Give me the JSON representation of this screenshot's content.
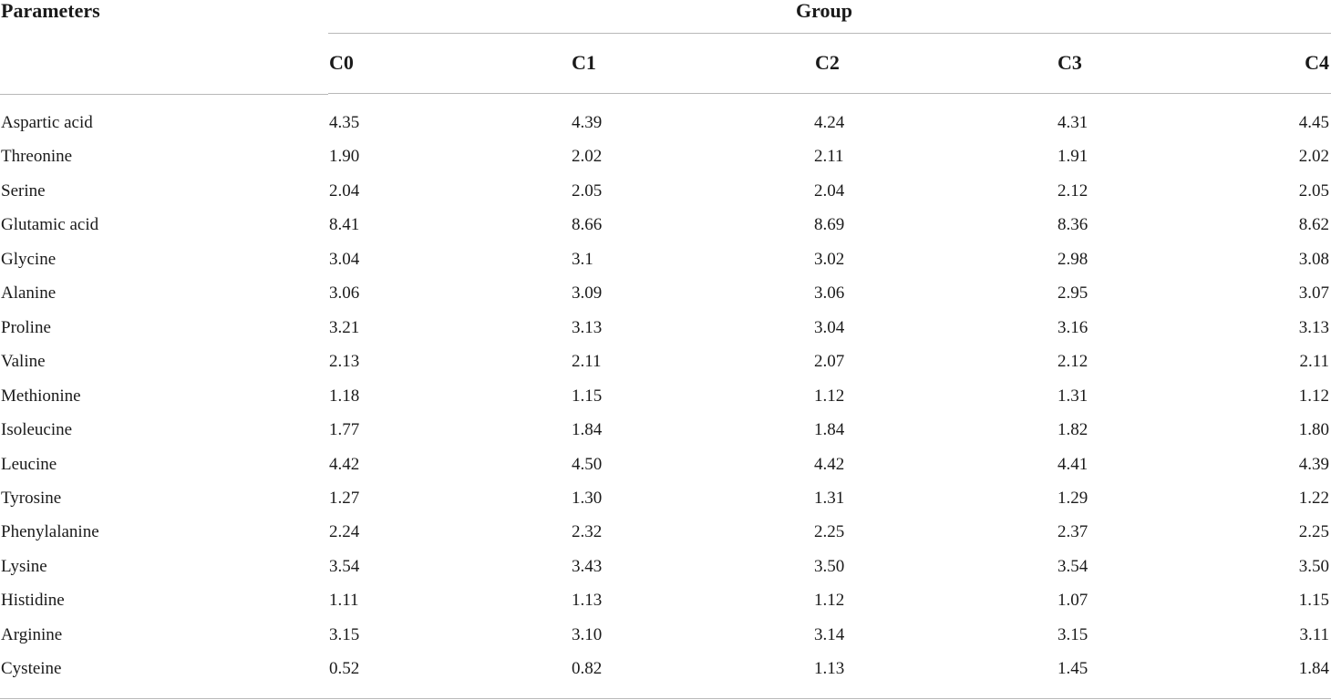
{
  "table": {
    "param_header": "Parameters",
    "group_header": "Group",
    "columns": [
      "C0",
      "C1",
      "C2",
      "C3",
      "C4"
    ],
    "rows": [
      {
        "name": "Aspartic acid",
        "values": [
          "4.35",
          "4.39",
          "4.24",
          "4.31",
          "4.45"
        ]
      },
      {
        "name": "Threonine",
        "values": [
          "1.90",
          "2.02",
          "2.11",
          "1.91",
          "2.02"
        ]
      },
      {
        "name": "Serine",
        "values": [
          "2.04",
          "2.05",
          "2.04",
          "2.12",
          "2.05"
        ]
      },
      {
        "name": "Glutamic acid",
        "values": [
          "8.41",
          "8.66",
          "8.69",
          "8.36",
          "8.62"
        ]
      },
      {
        "name": "Glycine",
        "values": [
          "3.04",
          "3.1",
          "3.02",
          "2.98",
          "3.08"
        ]
      },
      {
        "name": "Alanine",
        "values": [
          "3.06",
          "3.09",
          "3.06",
          "2.95",
          "3.07"
        ]
      },
      {
        "name": "Proline",
        "values": [
          "3.21",
          "3.13",
          "3.04",
          "3.16",
          "3.13"
        ]
      },
      {
        "name": "Valine",
        "values": [
          "2.13",
          "2.11",
          "2.07",
          "2.12",
          "2.11"
        ]
      },
      {
        "name": "Methionine",
        "values": [
          "1.18",
          "1.15",
          "1.12",
          "1.31",
          "1.12"
        ]
      },
      {
        "name": "Isoleucine",
        "values": [
          "1.77",
          "1.84",
          "1.84",
          "1.82",
          "1.80"
        ]
      },
      {
        "name": "Leucine",
        "values": [
          "4.42",
          "4.50",
          "4.42",
          "4.41",
          "4.39"
        ]
      },
      {
        "name": "Tyrosine",
        "values": [
          "1.27",
          "1.30",
          "1.31",
          "1.29",
          "1.22"
        ]
      },
      {
        "name": "Phenylalanine",
        "values": [
          "2.24",
          "2.32",
          "2.25",
          "2.37",
          "2.25"
        ]
      },
      {
        "name": "Lysine",
        "values": [
          "3.54",
          "3.43",
          "3.50",
          "3.54",
          "3.50"
        ]
      },
      {
        "name": "Histidine",
        "values": [
          "1.11",
          "1.13",
          "1.12",
          "1.07",
          "1.15"
        ]
      },
      {
        "name": "Arginine",
        "values": [
          "3.15",
          "3.10",
          "3.14",
          "3.15",
          "3.11"
        ]
      },
      {
        "name": "Cysteine",
        "values": [
          "0.52",
          "0.82",
          "1.13",
          "1.45",
          "1.84"
        ]
      }
    ]
  }
}
